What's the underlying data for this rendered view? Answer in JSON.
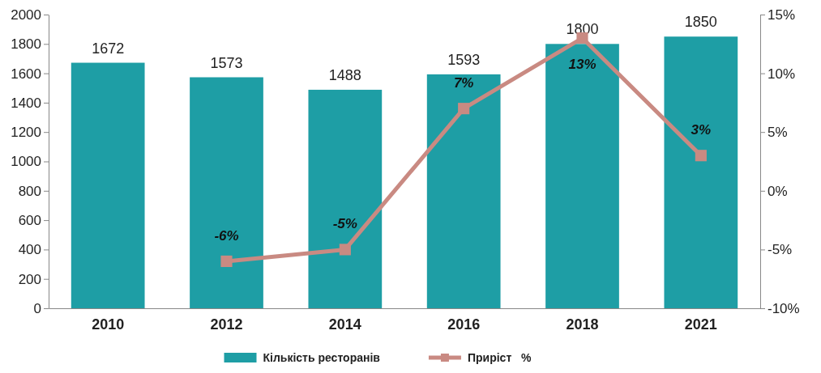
{
  "chart_data": {
    "type": "bar",
    "categories": [
      "2010",
      "2012",
      "2014",
      "2016",
      "2018",
      "2021"
    ],
    "ylim": [
      0,
      2000
    ],
    "yticks": [
      0,
      200,
      400,
      600,
      800,
      1000,
      1200,
      1400,
      1600,
      1800,
      2000
    ],
    "y2lim": [
      -10,
      15
    ],
    "y2ticks": [
      {
        "value": -10,
        "label": "-10%"
      },
      {
        "value": -5,
        "label": "-5%"
      },
      {
        "value": 0,
        "label": "0%"
      },
      {
        "value": 5,
        "label": "5%"
      },
      {
        "value": 10,
        "label": "10%"
      },
      {
        "value": 15,
        "label": "15%"
      }
    ],
    "grid": false,
    "legend": "bottom",
    "marker": "square",
    "line_style": "solid",
    "series": [
      {
        "name": "Кількість ресторанів",
        "color": "#1e9ea5",
        "values": [
          1672,
          1573,
          1488,
          1593,
          1800,
          1850
        ],
        "value_labels": [
          "1672",
          "1573",
          "1488",
          "1593",
          "1800",
          "1850"
        ]
      },
      {
        "name": "Приріст   %",
        "type": "line",
        "axis": "y2",
        "color": "#c98a82",
        "values": [
          null,
          -6,
          -5,
          7,
          13,
          3
        ],
        "value_labels": [
          null,
          "-6%",
          "-5%",
          "7%",
          "13%",
          "3%"
        ]
      }
    ]
  }
}
